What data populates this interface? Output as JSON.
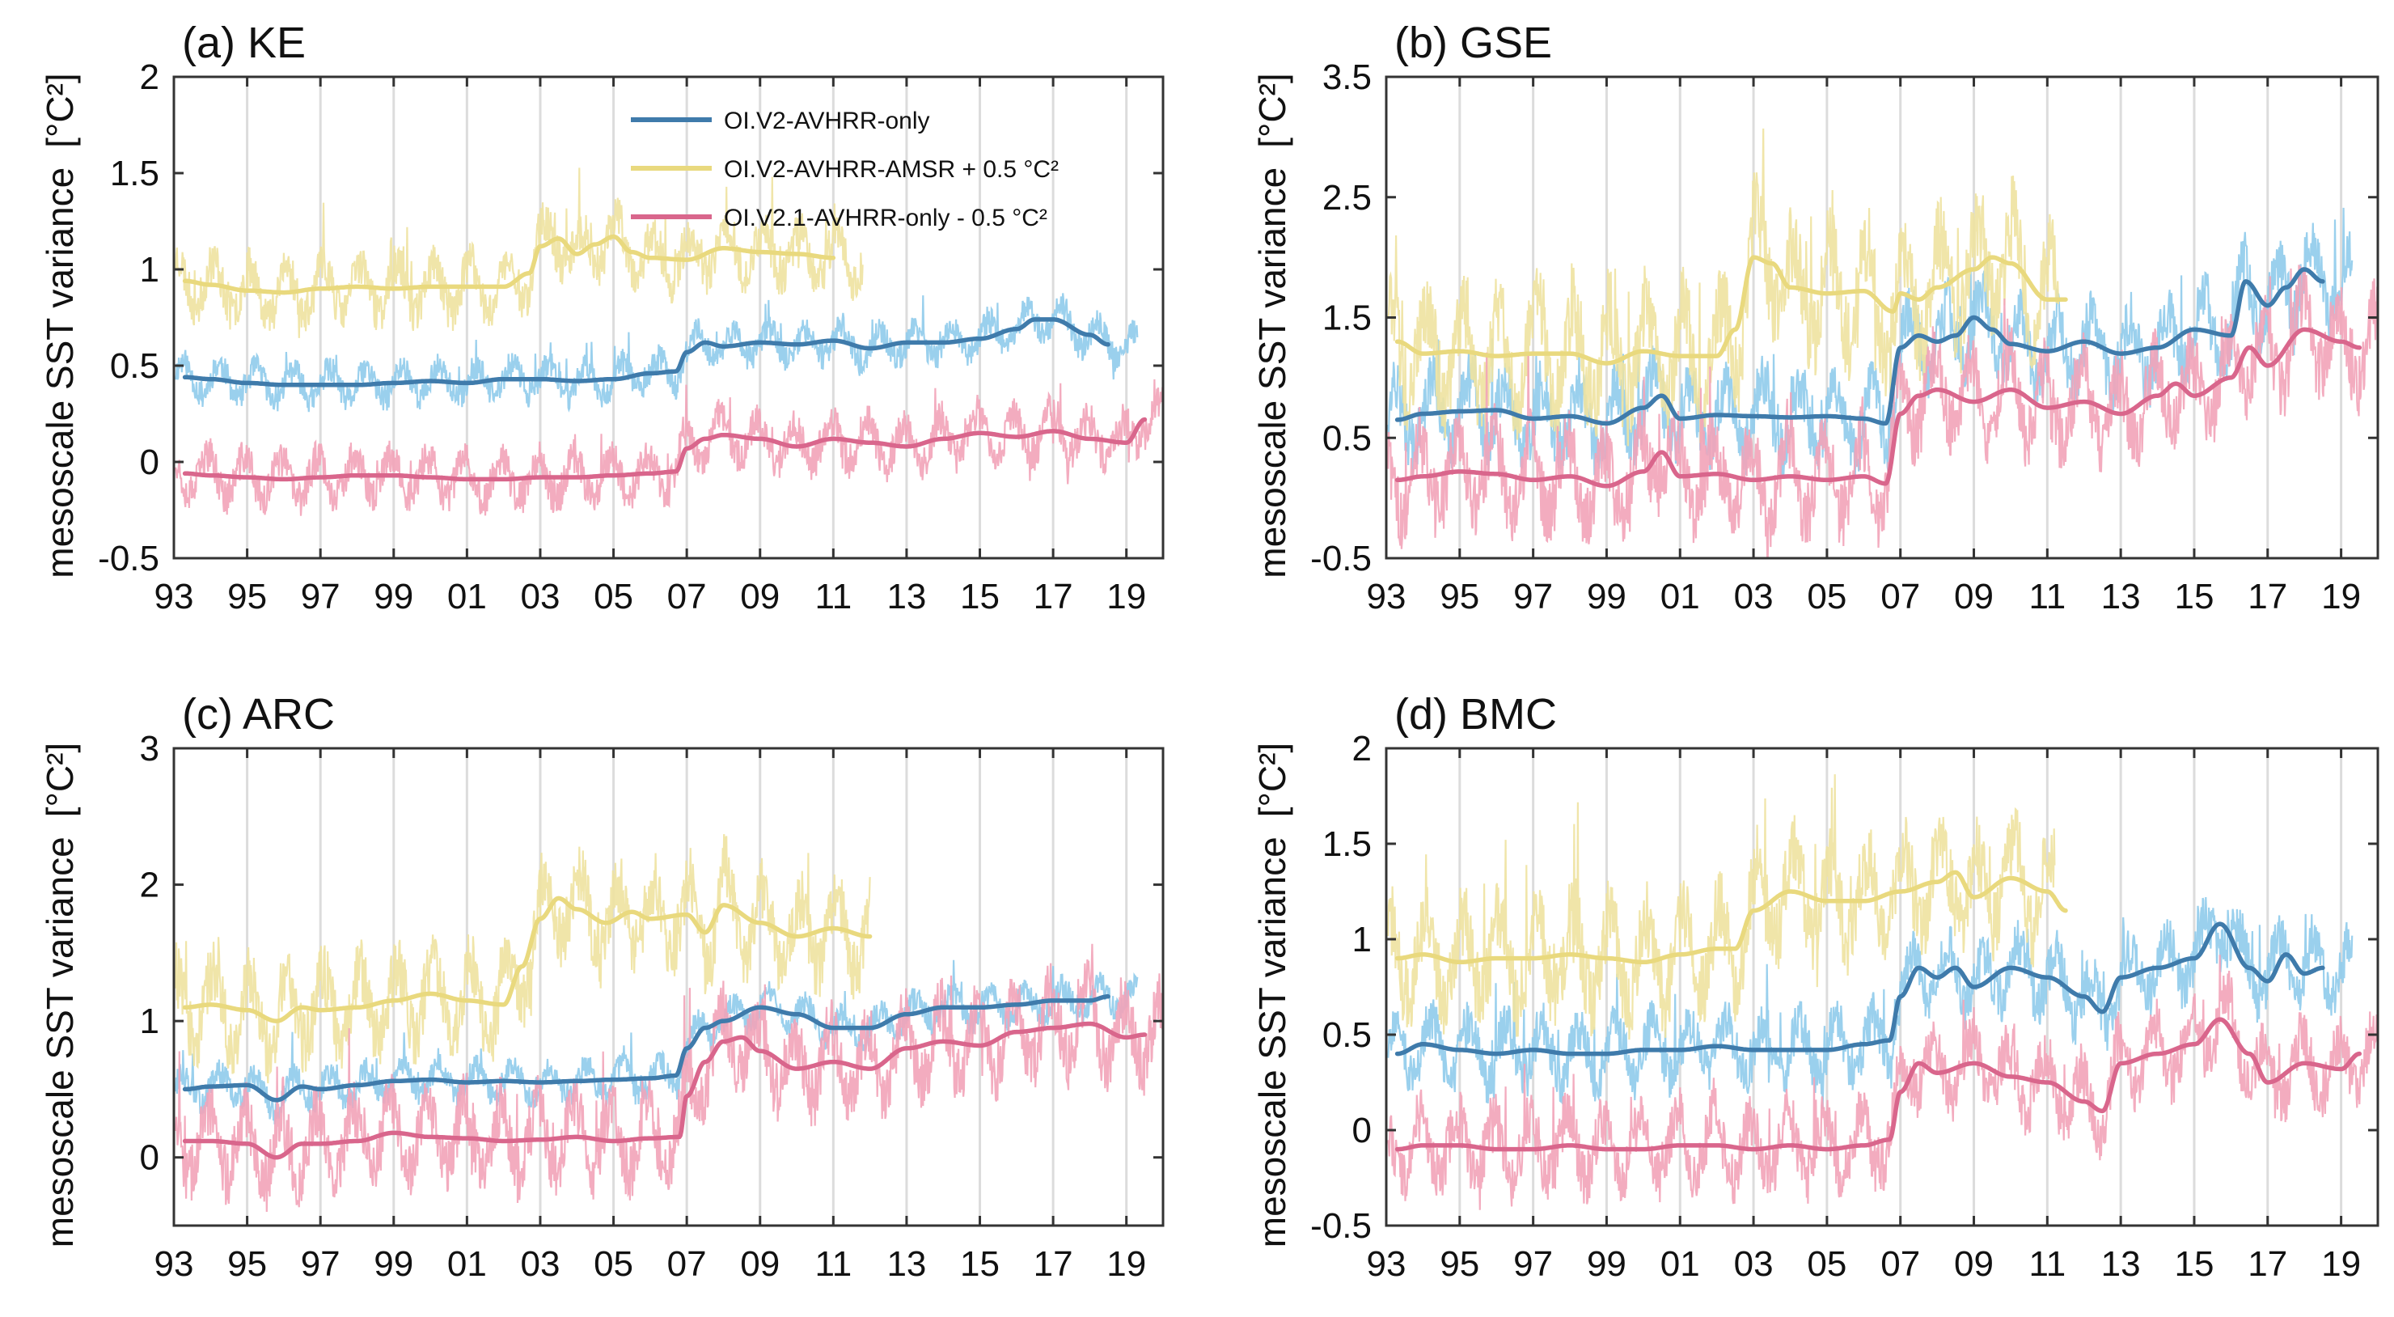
{
  "figure": {
    "ylabel": "mesoscale SST variance",
    "yunit": "[°C²]"
  },
  "legend": {
    "items": [
      {
        "label": "OI.V2-AVHRR-only",
        "color": "#3f7bab"
      },
      {
        "label": "OI.V2-AVHRR-AMSR + 0.5 °C²",
        "color": "#e9d97e"
      },
      {
        "label": "OI.V2.1-AVHRR-only - 0.5 °C²",
        "color": "#d9668c"
      }
    ]
  },
  "chart_data": [
    {
      "id": "a",
      "title": "(a) KE",
      "type": "line",
      "xlabel": "",
      "ylabel": "mesoscale SST variance [°C²]",
      "xlim": [
        1993,
        2020
      ],
      "ylim": [
        -0.5,
        2
      ],
      "xticks": [
        1993,
        1995,
        1997,
        1999,
        2001,
        2003,
        2005,
        2007,
        2009,
        2011,
        2013,
        2015,
        2017,
        2019
      ],
      "xticklabels": [
        "93",
        "95",
        "97",
        "99",
        "01",
        "03",
        "05",
        "07",
        "09",
        "11",
        "13",
        "15",
        "17",
        "19"
      ],
      "yticks": [
        -0.5,
        0,
        0.5,
        1,
        1.5,
        2
      ],
      "yticklabels": [
        "-0.5",
        "0",
        "0.5",
        "1",
        "1.5",
        "2"
      ],
      "series": [
        {
          "name": "OI.V2-AVHRR-only",
          "color": "#3f7bab",
          "raw_color": "#8fcbeb",
          "x": [
            1993.3,
            1994,
            1995,
            1996,
            1997,
            1998,
            1999,
            2000,
            2001,
            2002,
            2003,
            2004,
            2005,
            2006,
            2006.7,
            2007,
            2007.5,
            2008,
            2009,
            2010,
            2011,
            2012,
            2013,
            2014,
            2015,
            2016,
            2016.5,
            2017,
            2018,
            2018.5
          ],
          "y": [
            0.44,
            0.43,
            0.41,
            0.4,
            0.4,
            0.4,
            0.41,
            0.42,
            0.41,
            0.43,
            0.43,
            0.42,
            0.43,
            0.46,
            0.47,
            0.57,
            0.62,
            0.6,
            0.62,
            0.61,
            0.63,
            0.59,
            0.62,
            0.62,
            0.64,
            0.69,
            0.74,
            0.74,
            0.66,
            0.61
          ],
          "amp": 0.09,
          "raw_end": 2019.3,
          "seed": 11
        },
        {
          "name": "OI.V2-AVHRR-AMSR + 0.5 °C²",
          "color": "#e9d97e",
          "raw_color": "#eee2a0",
          "x": [
            1993.3,
            1994,
            1995,
            1996,
            1997,
            1998,
            1999,
            2000,
            2001,
            2002,
            2002.7,
            2003,
            2003.5,
            2004,
            2004.5,
            2005,
            2005.5,
            2006,
            2007,
            2008,
            2009,
            2010,
            2011
          ],
          "y": [
            0.94,
            0.92,
            0.89,
            0.88,
            0.9,
            0.91,
            0.9,
            0.91,
            0.91,
            0.91,
            0.98,
            1.12,
            1.16,
            1.08,
            1.13,
            1.17,
            1.09,
            1.06,
            1.05,
            1.11,
            1.09,
            1.08,
            1.06
          ],
          "amp": 0.14,
          "raw_end": 2011.8,
          "seed": 23
        },
        {
          "name": "OI.V2.1-AVHRR-only - 0.5 °C²",
          "color": "#d9668c",
          "raw_color": "#f2a3b8",
          "x": [
            1993.3,
            1994,
            1995,
            1996,
            1997,
            1998,
            1999,
            2000,
            2001,
            2002,
            2003,
            2004,
            2005,
            2006,
            2006.7,
            2007,
            2007.5,
            2008,
            2009,
            2010,
            2011,
            2012,
            2013,
            2014,
            2015,
            2016,
            2017,
            2018,
            2019,
            2019.5
          ],
          "y": [
            -0.06,
            -0.07,
            -0.08,
            -0.09,
            -0.08,
            -0.07,
            -0.07,
            -0.08,
            -0.09,
            -0.09,
            -0.08,
            -0.08,
            -0.07,
            -0.06,
            -0.05,
            0.07,
            0.12,
            0.14,
            0.12,
            0.08,
            0.12,
            0.1,
            0.08,
            0.12,
            0.15,
            0.13,
            0.16,
            0.12,
            0.1,
            0.22
          ],
          "amp": 0.12,
          "raw_end": 2020,
          "seed": 37
        }
      ]
    },
    {
      "id": "b",
      "title": "(b) GSE",
      "type": "line",
      "xlabel": "",
      "ylabel": "mesoscale SST variance [°C²]",
      "xlim": [
        1993,
        2020
      ],
      "ylim": [
        -0.5,
        3.5
      ],
      "xticks": [
        1993,
        1995,
        1997,
        1999,
        2001,
        2003,
        2005,
        2007,
        2009,
        2011,
        2013,
        2015,
        2017,
        2019
      ],
      "xticklabels": [
        "93",
        "95",
        "97",
        "99",
        "01",
        "03",
        "05",
        "07",
        "09",
        "11",
        "13",
        "15",
        "17",
        "19"
      ],
      "yticks": [
        -0.5,
        0.5,
        1.5,
        2.5,
        3.5
      ],
      "yticklabels": [
        "-0.5",
        "0.5",
        "1.5",
        "2.5",
        "3.5"
      ],
      "series": [
        {
          "name": "OI.V2-AVHRR-only",
          "color": "#3f7bab",
          "raw_color": "#8fcbeb",
          "x": [
            1993.3,
            1994,
            1995,
            1996,
            1997,
            1998,
            1999,
            2000,
            2000.5,
            2001,
            2002,
            2003,
            2004,
            2005,
            2006,
            2006.6,
            2007,
            2007.5,
            2008,
            2008.5,
            2009,
            2009.5,
            2010,
            2011,
            2012,
            2013,
            2014,
            2015,
            2016,
            2016.4,
            2017,
            2017.5,
            2018,
            2018.5
          ],
          "y": [
            0.65,
            0.7,
            0.72,
            0.73,
            0.66,
            0.68,
            0.62,
            0.75,
            0.85,
            0.66,
            0.69,
            0.68,
            0.67,
            0.68,
            0.66,
            0.62,
            1.25,
            1.35,
            1.3,
            1.35,
            1.5,
            1.4,
            1.28,
            1.22,
            1.3,
            1.2,
            1.25,
            1.4,
            1.35,
            1.8,
            1.6,
            1.75,
            1.9,
            1.8
          ],
          "amp": 0.3,
          "raw_end": 2019.3,
          "seed": 12
        },
        {
          "name": "OI.V2-AVHRR-AMSR + 0.5 °C²",
          "color": "#e9d97e",
          "raw_color": "#eee2a0",
          "x": [
            1993.3,
            1994,
            1995,
            1996,
            1997,
            1998,
            1999,
            2000,
            2001,
            2002,
            2002.5,
            2003,
            2003.5,
            2004,
            2005,
            2006,
            2006.8,
            2007,
            2007.5,
            2008,
            2009,
            2009.5,
            2010,
            2011,
            2011.5
          ],
          "y": [
            1.3,
            1.2,
            1.22,
            1.18,
            1.2,
            1.2,
            1.12,
            1.22,
            1.18,
            1.18,
            1.4,
            2.0,
            1.95,
            1.75,
            1.7,
            1.72,
            1.55,
            1.7,
            1.65,
            1.75,
            1.9,
            2.0,
            1.95,
            1.65,
            1.65
          ],
          "amp": 0.45,
          "raw_end": 2011.3,
          "seed": 24
        },
        {
          "name": "OI.V2.1-AVHRR-only - 0.5 °C²",
          "color": "#d9668c",
          "raw_color": "#f2a3b8",
          "x": [
            1993.3,
            1994,
            1995,
            1996,
            1997,
            1998,
            1999,
            2000,
            2000.5,
            2001,
            2002,
            2003,
            2004,
            2005,
            2006,
            2006.6,
            2007,
            2007.5,
            2008,
            2009,
            2010,
            2011,
            2012,
            2013,
            2014,
            2014.5,
            2015,
            2016,
            2016.5,
            2017,
            2018,
            2019,
            2019.5
          ],
          "y": [
            0.15,
            0.18,
            0.22,
            0.2,
            0.15,
            0.18,
            0.1,
            0.22,
            0.38,
            0.18,
            0.2,
            0.15,
            0.18,
            0.15,
            0.18,
            0.12,
            0.7,
            0.85,
            0.9,
            0.8,
            0.9,
            0.75,
            0.8,
            0.7,
            0.85,
            0.95,
            0.85,
            1.0,
            1.25,
            1.1,
            1.4,
            1.3,
            1.25
          ],
          "amp": 0.35,
          "raw_end": 2020,
          "seed": 38
        }
      ]
    },
    {
      "id": "c",
      "title": "(c) ARC",
      "type": "line",
      "xlabel": "",
      "ylabel": "mesoscale SST variance [°C²]",
      "xlim": [
        1993,
        2020
      ],
      "ylim": [
        -0.5,
        3
      ],
      "xticks": [
        1993,
        1995,
        1997,
        1999,
        2001,
        2003,
        2005,
        2007,
        2009,
        2011,
        2013,
        2015,
        2017,
        2019
      ],
      "xticklabels": [
        "93",
        "95",
        "97",
        "99",
        "01",
        "03",
        "05",
        "07",
        "09",
        "11",
        "13",
        "15",
        "17",
        "19"
      ],
      "yticks": [
        0,
        1,
        2,
        3
      ],
      "yticklabels": [
        "0",
        "1",
        "2",
        "3"
      ],
      "series": [
        {
          "name": "OI.V2-AVHRR-only",
          "color": "#3f7bab",
          "raw_color": "#8fcbeb",
          "x": [
            1993.3,
            1994,
            1995,
            1995.8,
            1996.5,
            1997,
            1998,
            1999,
            2000,
            2001,
            2002,
            2003,
            2004,
            2005,
            2006,
            2006.7,
            2007,
            2007.5,
            2008,
            2009,
            2010,
            2011,
            2012,
            2013,
            2014,
            2015,
            2016,
            2017,
            2018,
            2018.5
          ],
          "y": [
            0.5,
            0.52,
            0.53,
            0.42,
            0.52,
            0.5,
            0.53,
            0.56,
            0.57,
            0.55,
            0.56,
            0.55,
            0.56,
            0.57,
            0.58,
            0.6,
            0.8,
            0.95,
            1.0,
            1.1,
            1.05,
            0.95,
            0.95,
            1.05,
            1.1,
            1.1,
            1.12,
            1.15,
            1.15,
            1.18
          ],
          "amp": 0.12,
          "raw_end": 2019.3,
          "seed": 13
        },
        {
          "name": "OI.V2-AVHRR-AMSR + 0.5 °C²",
          "color": "#e9d97e",
          "raw_color": "#eee2a0",
          "x": [
            1993.3,
            1994,
            1995,
            1995.8,
            1996.5,
            1997,
            1998,
            1999,
            2000,
            2001,
            2002,
            2002.5,
            2003,
            2003.5,
            2004,
            2004.8,
            2005.5,
            2006,
            2007,
            2007.5,
            2008,
            2009,
            2010,
            2011,
            2012
          ],
          "y": [
            1.1,
            1.12,
            1.08,
            1.0,
            1.1,
            1.08,
            1.1,
            1.15,
            1.2,
            1.15,
            1.12,
            1.4,
            1.75,
            1.9,
            1.82,
            1.72,
            1.8,
            1.75,
            1.78,
            1.65,
            1.85,
            1.72,
            1.62,
            1.68,
            1.62
          ],
          "amp": 0.3,
          "raw_end": 2012,
          "seed": 25
        },
        {
          "name": "OI.V2.1-AVHRR-only - 0.5 °C²",
          "color": "#d9668c",
          "raw_color": "#f2a3b8",
          "x": [
            1993.3,
            1994,
            1995,
            1995.8,
            1996.5,
            1997,
            1998,
            1999,
            2000,
            2001,
            2002,
            2003,
            2004,
            2005,
            2006,
            2006.8,
            2007,
            2007.5,
            2008,
            2008.5,
            2009,
            2010,
            2011,
            2012,
            2013,
            2014,
            2015,
            2016,
            2017,
            2018,
            2019,
            2019.5
          ],
          "y": [
            0.12,
            0.12,
            0.1,
            0.0,
            0.1,
            0.1,
            0.12,
            0.18,
            0.15,
            0.14,
            0.12,
            0.13,
            0.15,
            0.12,
            0.14,
            0.15,
            0.45,
            0.7,
            0.85,
            0.88,
            0.78,
            0.65,
            0.7,
            0.65,
            0.8,
            0.85,
            0.82,
            0.92,
            0.95,
            0.98,
            0.88,
            0.9
          ],
          "amp": 0.28,
          "raw_end": 2020,
          "seed": 39
        }
      ]
    },
    {
      "id": "d",
      "title": "(d) BMC",
      "type": "line",
      "xlabel": "",
      "ylabel": "mesoscale SST variance [°C²]",
      "xlim": [
        1993,
        2020
      ],
      "ylim": [
        -0.5,
        2
      ],
      "xticks": [
        1993,
        1995,
        1997,
        1999,
        2001,
        2003,
        2005,
        2007,
        2009,
        2011,
        2013,
        2015,
        2017,
        2019
      ],
      "xticklabels": [
        "93",
        "95",
        "97",
        "99",
        "01",
        "03",
        "05",
        "07",
        "09",
        "11",
        "13",
        "15",
        "17",
        "19"
      ],
      "yticks": [
        -0.5,
        0,
        0.5,
        1,
        1.5,
        2
      ],
      "yticklabels": [
        "-0.5",
        "0",
        "0.5",
        "1",
        "1.5",
        "2"
      ],
      "series": [
        {
          "name": "OI.V2-AVHRR-only",
          "color": "#3f7bab",
          "raw_color": "#8fcbeb",
          "x": [
            1993.3,
            1994,
            1995,
            1996,
            1997,
            1998,
            1999,
            2000,
            2001,
            2002,
            2003,
            2004,
            2005,
            2006,
            2006.7,
            2007,
            2007.5,
            2008,
            2008.5,
            2009,
            2010,
            2011,
            2012,
            2012.5,
            2013,
            2014,
            2015,
            2015.7,
            2016.5,
            2017,
            2017.5,
            2018,
            2018.5
          ],
          "y": [
            0.4,
            0.45,
            0.42,
            0.4,
            0.42,
            0.4,
            0.4,
            0.42,
            0.42,
            0.44,
            0.42,
            0.42,
            0.42,
            0.45,
            0.47,
            0.7,
            0.85,
            0.8,
            0.85,
            0.75,
            0.85,
            0.8,
            0.7,
            0.62,
            0.8,
            0.85,
            0.9,
            1.08,
            0.85,
            0.78,
            0.92,
            0.82,
            0.85
          ],
          "amp": 0.16,
          "raw_end": 2019.3,
          "seed": 14
        },
        {
          "name": "OI.V2-AVHRR-AMSR + 0.5 °C²",
          "color": "#e9d97e",
          "raw_color": "#eee2a0",
          "x": [
            1993.3,
            1994,
            1995,
            1996,
            1997,
            1998,
            1999,
            2000,
            2001,
            2002,
            2002.5,
            2003,
            2004,
            2005,
            2006,
            2007,
            2008,
            2008.5,
            2009,
            2010,
            2011,
            2011.5
          ],
          "y": [
            0.9,
            0.92,
            0.88,
            0.9,
            0.9,
            0.92,
            0.9,
            0.88,
            0.92,
            0.95,
            0.95,
            1.15,
            1.25,
            1.2,
            1.2,
            1.25,
            1.3,
            1.35,
            1.22,
            1.32,
            1.25,
            1.15
          ],
          "amp": 0.25,
          "raw_end": 2011.2,
          "seed": 26
        },
        {
          "name": "OI.V2.1-AVHRR-only - 0.5 °C²",
          "color": "#d9668c",
          "raw_color": "#f2a3b8",
          "x": [
            1993.3,
            1994,
            1995,
            1996,
            1997,
            1998,
            1999,
            2000,
            2001,
            2002,
            2003,
            2004,
            2005,
            2006,
            2006.7,
            2007,
            2007.5,
            2008,
            2009,
            2010,
            2011,
            2012,
            2012.5,
            2013,
            2014,
            2015,
            2015.7,
            2016.5,
            2017,
            2018,
            2019,
            2019.5
          ],
          "y": [
            -0.1,
            -0.08,
            -0.08,
            -0.1,
            -0.1,
            -0.08,
            -0.1,
            -0.1,
            -0.08,
            -0.08,
            -0.1,
            -0.08,
            -0.1,
            -0.08,
            -0.05,
            0.2,
            0.35,
            0.3,
            0.35,
            0.28,
            0.25,
            0.15,
            0.1,
            0.35,
            0.4,
            0.45,
            0.58,
            0.4,
            0.25,
            0.35,
            0.32,
            0.4
          ],
          "amp": 0.18,
          "raw_end": 2020,
          "seed": 40
        }
      ]
    }
  ]
}
